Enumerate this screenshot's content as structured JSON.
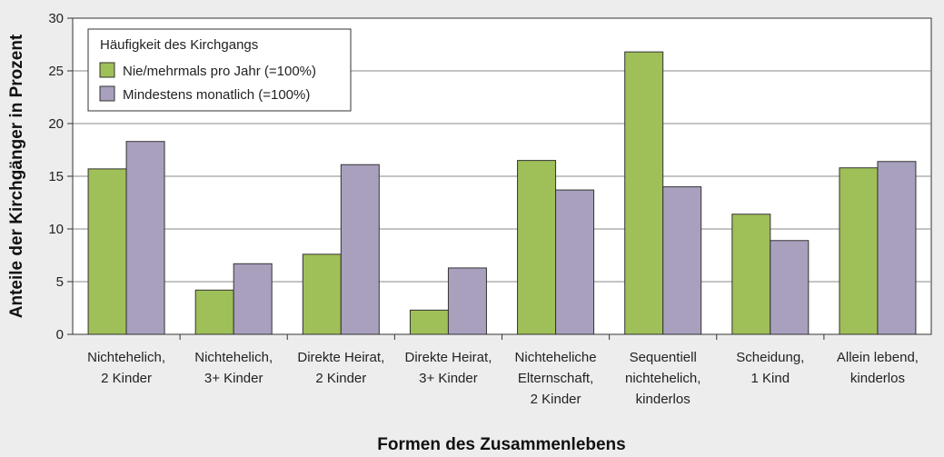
{
  "chart_data": {
    "type": "bar",
    "categories": [
      [
        "Nichtehelich,",
        "2 Kinder"
      ],
      [
        "Nichtehelich,",
        "3+ Kinder"
      ],
      [
        "Direkte Heirat,",
        "2 Kinder"
      ],
      [
        "Direkte Heirat,",
        "3+ Kinder"
      ],
      [
        "Nichteheliche",
        "Elternschaft,",
        "2 Kinder"
      ],
      [
        "Sequentiell",
        "nichtehelich,",
        "kinderlos"
      ],
      [
        "Scheidung,",
        "1 Kind"
      ],
      [
        "Allein lebend,",
        "kinderlos"
      ]
    ],
    "series": [
      {
        "name": "Nie/mehrmals pro Jahr (=100%)",
        "color": "#9fbf58",
        "values": [
          15.7,
          4.2,
          7.6,
          2.3,
          16.5,
          26.8,
          11.4,
          15.8
        ]
      },
      {
        "name": "Mindestens monatlich (=100%)",
        "color": "#a9a0be",
        "values": [
          18.3,
          6.7,
          16.1,
          6.3,
          13.7,
          14.0,
          8.9,
          16.4
        ]
      }
    ],
    "legend_title": "Häufigkeit des Kirchgangs",
    "legend_position": "top-left",
    "xlabel": "Formen des Zusammenlebens",
    "ylabel": "Anteile der Kirchgänger in Prozent",
    "ylim": [
      0,
      30
    ],
    "yticks": [
      0,
      5,
      10,
      15,
      20,
      25,
      30
    ],
    "grid": true
  }
}
